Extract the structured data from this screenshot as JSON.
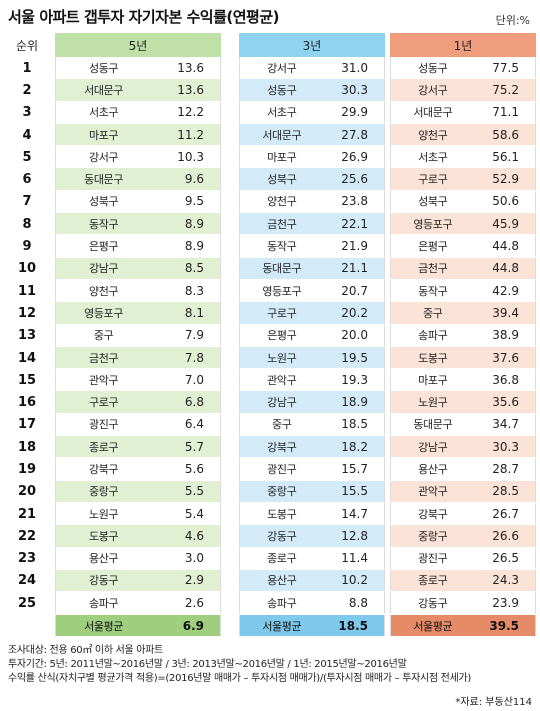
{
  "header": {
    "title": "서울 아파트 갭투자 자기자본 수익률(연평균)",
    "unit": "단위:%"
  },
  "columns": {
    "rank": "순위",
    "y5": "5년",
    "y3": "3년",
    "y1": "1년"
  },
  "rows": [
    {
      "rank": "1",
      "y5n": "성동구",
      "y5v": "13.6",
      "y3n": "강서구",
      "y3v": "31.0",
      "y1n": "성동구",
      "y1v": "77.5"
    },
    {
      "rank": "2",
      "y5n": "서대문구",
      "y5v": "13.6",
      "y3n": "성동구",
      "y3v": "30.3",
      "y1n": "강서구",
      "y1v": "75.2"
    },
    {
      "rank": "3",
      "y5n": "서초구",
      "y5v": "12.2",
      "y3n": "서초구",
      "y3v": "29.9",
      "y1n": "서대문구",
      "y1v": "71.1"
    },
    {
      "rank": "4",
      "y5n": "마포구",
      "y5v": "11.2",
      "y3n": "서대문구",
      "y3v": "27.8",
      "y1n": "양천구",
      "y1v": "58.6"
    },
    {
      "rank": "5",
      "y5n": "강서구",
      "y5v": "10.3",
      "y3n": "마포구",
      "y3v": "26.9",
      "y1n": "서초구",
      "y1v": "56.1"
    },
    {
      "rank": "6",
      "y5n": "동대문구",
      "y5v": "9.6",
      "y3n": "성북구",
      "y3v": "25.6",
      "y1n": "구로구",
      "y1v": "52.9"
    },
    {
      "rank": "7",
      "y5n": "성북구",
      "y5v": "9.5",
      "y3n": "양천구",
      "y3v": "23.8",
      "y1n": "성북구",
      "y1v": "50.6"
    },
    {
      "rank": "8",
      "y5n": "동작구",
      "y5v": "8.9",
      "y3n": "금천구",
      "y3v": "22.1",
      "y1n": "영등포구",
      "y1v": "45.9"
    },
    {
      "rank": "9",
      "y5n": "은평구",
      "y5v": "8.9",
      "y3n": "동작구",
      "y3v": "21.9",
      "y1n": "은평구",
      "y1v": "44.8"
    },
    {
      "rank": "10",
      "y5n": "강남구",
      "y5v": "8.5",
      "y3n": "동대문구",
      "y3v": "21.1",
      "y1n": "금천구",
      "y1v": "44.8"
    },
    {
      "rank": "11",
      "y5n": "양천구",
      "y5v": "8.3",
      "y3n": "영등포구",
      "y3v": "20.7",
      "y1n": "동작구",
      "y1v": "42.9"
    },
    {
      "rank": "12",
      "y5n": "영등포구",
      "y5v": "8.1",
      "y3n": "구로구",
      "y3v": "20.2",
      "y1n": "중구",
      "y1v": "39.4"
    },
    {
      "rank": "13",
      "y5n": "중구",
      "y5v": "7.9",
      "y3n": "은평구",
      "y3v": "20.0",
      "y1n": "송파구",
      "y1v": "38.9"
    },
    {
      "rank": "14",
      "y5n": "금천구",
      "y5v": "7.8",
      "y3n": "노원구",
      "y3v": "19.5",
      "y1n": "도봉구",
      "y1v": "37.6"
    },
    {
      "rank": "15",
      "y5n": "관악구",
      "y5v": "7.0",
      "y3n": "관악구",
      "y3v": "19.3",
      "y1n": "마포구",
      "y1v": "36.8"
    },
    {
      "rank": "16",
      "y5n": "구로구",
      "y5v": "6.8",
      "y3n": "강남구",
      "y3v": "18.9",
      "y1n": "노원구",
      "y1v": "35.6"
    },
    {
      "rank": "17",
      "y5n": "광진구",
      "y5v": "6.4",
      "y3n": "중구",
      "y3v": "18.5",
      "y1n": "동대문구",
      "y1v": "34.7"
    },
    {
      "rank": "18",
      "y5n": "종로구",
      "y5v": "5.7",
      "y3n": "강북구",
      "y3v": "18.2",
      "y1n": "강남구",
      "y1v": "30.3"
    },
    {
      "rank": "19",
      "y5n": "강북구",
      "y5v": "5.6",
      "y3n": "광진구",
      "y3v": "15.7",
      "y1n": "용산구",
      "y1v": "28.7"
    },
    {
      "rank": "20",
      "y5n": "중랑구",
      "y5v": "5.5",
      "y3n": "중랑구",
      "y3v": "15.5",
      "y1n": "관악구",
      "y1v": "28.5"
    },
    {
      "rank": "21",
      "y5n": "노원구",
      "y5v": "5.4",
      "y3n": "도봉구",
      "y3v": "14.7",
      "y1n": "강북구",
      "y1v": "26.7"
    },
    {
      "rank": "22",
      "y5n": "도봉구",
      "y5v": "4.6",
      "y3n": "강동구",
      "y3v": "12.8",
      "y1n": "중랑구",
      "y1v": "26.6"
    },
    {
      "rank": "23",
      "y5n": "용산구",
      "y5v": "3.0",
      "y3n": "종로구",
      "y3v": "11.4",
      "y1n": "광진구",
      "y1v": "26.5"
    },
    {
      "rank": "24",
      "y5n": "강동구",
      "y5v": "2.9",
      "y3n": "용산구",
      "y3v": "10.2",
      "y1n": "종로구",
      "y1v": "24.3"
    },
    {
      "rank": "25",
      "y5n": "송파구",
      "y5v": "2.6",
      "y3n": "송파구",
      "y3v": "8.8",
      "y1n": "강동구",
      "y1v": "23.9"
    }
  ],
  "averages": {
    "y5n": "서울평균",
    "y5v": "6.9",
    "y3n": "서울평균",
    "y3v": "18.5",
    "y1n": "서울평균",
    "y1v": "39.5"
  },
  "notes": {
    "line1": "조사대상: 전용 60㎡ 이하 서울 아파트",
    "line2": "투자기간: 5년: 2011년말~2016년말 / 3년: 2013년말~2016년말 / 1년: 2015년말~2016년말",
    "line3": "수익률 산식(자치구별 평균가격 적용)=(2016년말 매매가 – 투자시점 매매가)/(투자시점 매매가 – 투자시점 전세가)",
    "source": "*자료: 부동산114"
  },
  "colors": {
    "y5_header": "#bfe0a6",
    "y5_alt": "#e1efd3",
    "y3_header": "#8fd3f1",
    "y3_alt": "#d3ebf8",
    "y1_header": "#ef9d7c",
    "y1_alt": "#fbe3d7"
  }
}
